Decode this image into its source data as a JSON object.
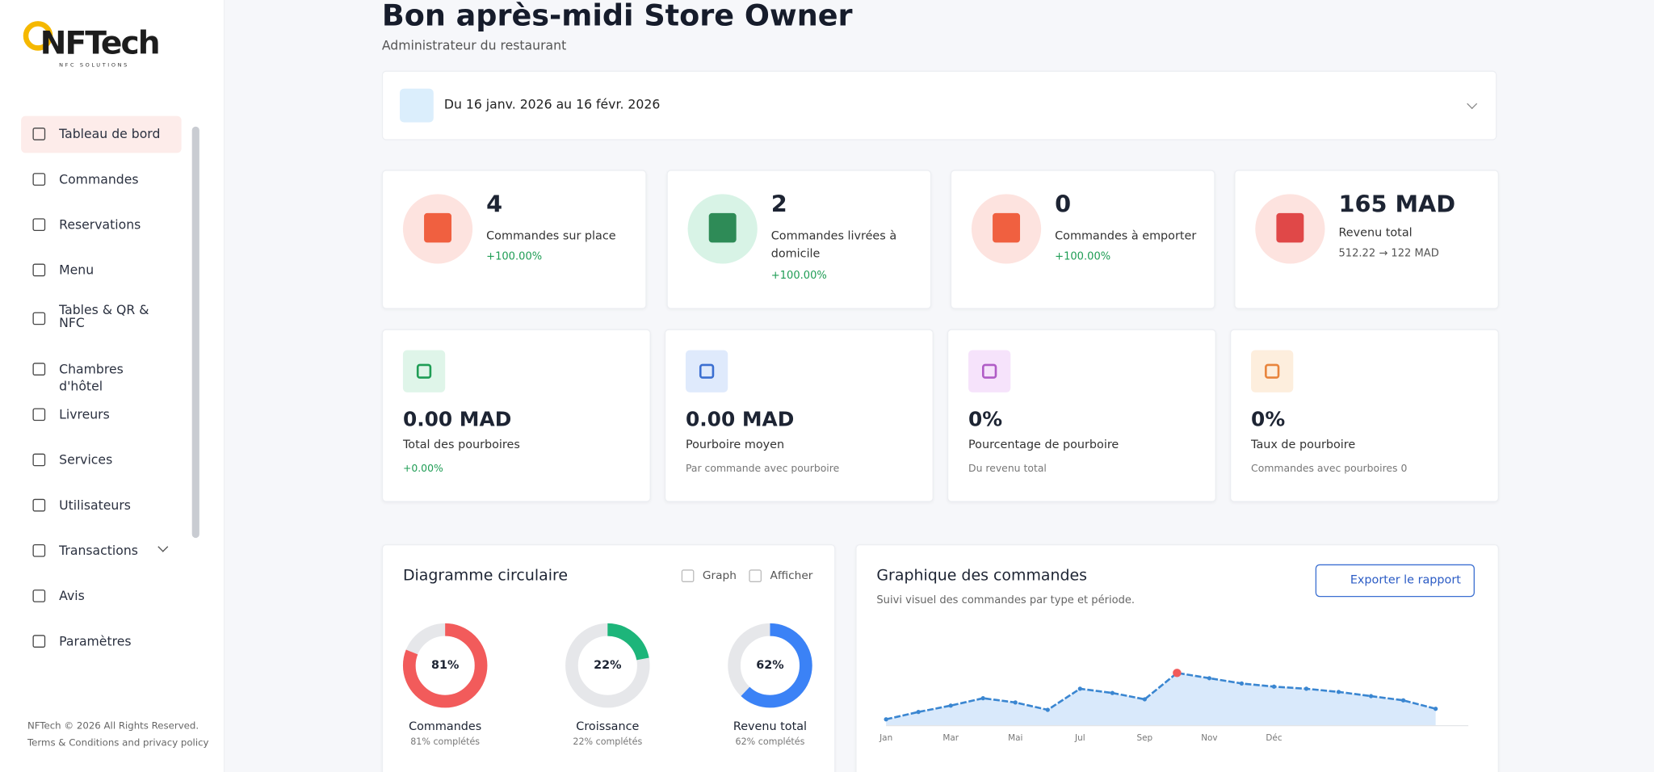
{
  "sidebar": {
    "logo": "NFTech",
    "tagline": "NFC SOLUTIONS",
    "nav": [
      "Tableau de bord",
      "Commandes",
      "Reservations",
      "Menu",
      "Tables & QR & NFC",
      "Chambres d'hôtel",
      "Livreurs",
      "Services",
      "Utilisateurs",
      "Transactions",
      "Avis",
      "Paramètres"
    ],
    "footer": [
      "NFTech © 2026 All Rights Reserved.",
      "Terms & Conditions and privacy policy"
    ]
  },
  "header": {
    "title": "Bon après-midi Store Owner",
    "subtitle": "Administrateur du restaurant"
  },
  "date_range": "Du 16 janv. 2026 au 16 févr. 2026",
  "stats": [
    {
      "value": "4",
      "label": "Commandes sur place",
      "change": "+100.00%"
    },
    {
      "value": "2",
      "label": "Commandes livrées à domicile",
      "change": "+100.00%"
    },
    {
      "value": "0",
      "label": "Commandes à emporter",
      "change": "+100.00%"
    },
    {
      "value": "165 MAD",
      "label": "Revenu total",
      "change": "512.22 → 122 MAD"
    }
  ],
  "tips": [
    {
      "value": "0.00 MAD",
      "label": "Total des pourboires",
      "note": "+0.00%"
    },
    {
      "value": "0.00 MAD",
      "label": "Pourboire moyen",
      "note": "Par commande avec pourboire"
    },
    {
      "value": "0%",
      "label": "Pourcentage de pourboire",
      "note": "Du revenu total"
    },
    {
      "value": "0%",
      "label": "Taux de pourboire",
      "note": "Commandes avec pourboires 0"
    }
  ],
  "pie_panel": {
    "title": "Diagramme circulaire",
    "options": [
      "Graph",
      "Afficher"
    ],
    "donuts": [
      {
        "value": 81,
        "value_label": "81%",
        "label": "Commandes",
        "caption": "81% complétés",
        "color": "#f25b5b"
      },
      {
        "value": 22,
        "value_label": "22%",
        "label": "Croissance",
        "caption": "22% complétés",
        "color": "#1db57a"
      },
      {
        "value": 62,
        "value_label": "62%",
        "label": "Revenu total",
        "caption": "62% complétés",
        "color": "#3b82f6"
      }
    ]
  },
  "orders_panel": {
    "title": "Graphique des commandes",
    "subtitle": "Suivi visuel des commandes par type et période.",
    "button": "Exporter le rapport",
    "chart": {
      "type": "line",
      "color": "#3a86d1",
      "categories": [
        "Jan",
        null,
        "Mar",
        null,
        "Mai",
        null,
        "Jul",
        null,
        "Sep",
        null,
        "Nov",
        null,
        "Déc",
        null,
        null,
        null,
        null,
        null
      ],
      "values": [
        6,
        13,
        19,
        26,
        22,
        15,
        35,
        31,
        25,
        50,
        45,
        40,
        37,
        35,
        32,
        28,
        24,
        16
      ]
    }
  }
}
